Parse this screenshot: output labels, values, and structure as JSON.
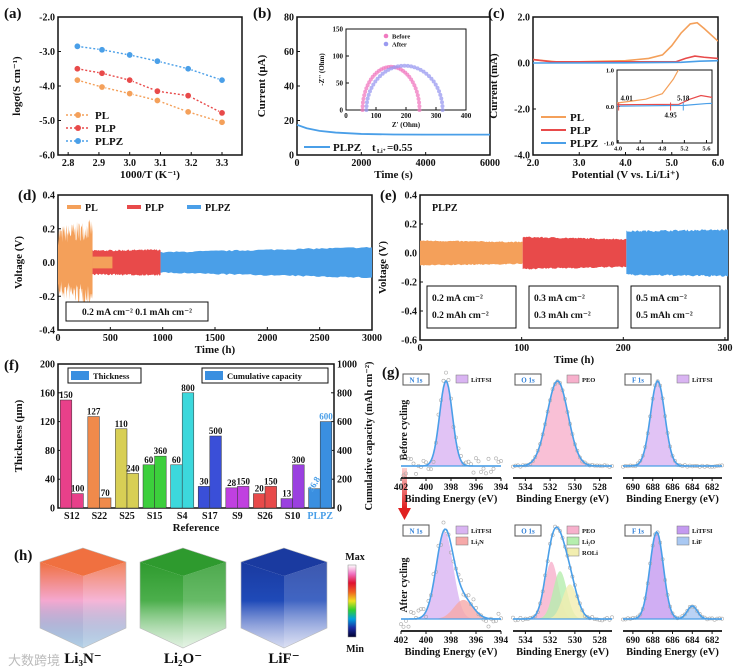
{
  "colors": {
    "PL": "#f4a05a",
    "PLP": "#e84a4a",
    "PLPZ": "#4a9fe8"
  },
  "watermark": "大数跨境",
  "chart_data": [
    {
      "panel": "(a)",
      "type": "line",
      "xlabel": "1000/T (K⁻¹)",
      "ylabel": "logσ(S cm⁻¹)",
      "xlim": [
        2.767,
        3.365
      ],
      "ylim": [
        -6,
        -2
      ],
      "xticks": [
        2.8,
        2.9,
        3.0,
        3.1,
        3.2,
        3.3
      ],
      "xtick_labels": [
        "2.8",
        "2.9",
        "3.0",
        "3.1",
        "3.2",
        "3.3"
      ],
      "yticks": [
        -6,
        -5,
        -4,
        -3,
        -2
      ],
      "ytick_labels": [
        "-6.0",
        "-5.0",
        "-4.0",
        "-3.0",
        "-2.0"
      ],
      "legend": "bottom-left",
      "x": [
        2.83,
        2.91,
        3.0,
        3.09,
        3.19,
        3.3
      ],
      "series": [
        {
          "name": "PL",
          "values": [
            -3.83,
            -4.03,
            -4.22,
            -4.42,
            -4.75,
            -5.05
          ]
        },
        {
          "name": "PLP",
          "values": [
            -3.5,
            -3.63,
            -3.83,
            -4.15,
            -4.28,
            -4.78
          ]
        },
        {
          "name": "PLPZ",
          "values": [
            -2.85,
            -2.95,
            -3.1,
            -3.28,
            -3.5,
            -3.83
          ]
        }
      ]
    },
    {
      "panel": "(b)",
      "type": "line",
      "xlabel": "Time (s)",
      "ylabel": "Current (μA)",
      "xlim": [
        0,
        6000
      ],
      "ylim": [
        0,
        80
      ],
      "xticks": [
        0,
        2000,
        4000,
        6000
      ],
      "xtick_labels": [
        "0",
        "2000",
        "4000",
        "6000"
      ],
      "yticks": [
        0,
        20,
        40,
        60,
        80
      ],
      "ytick_labels": [
        "0",
        "20",
        "40",
        "60",
        "80"
      ],
      "series": [
        {
          "name": "PLPZ",
          "points": [
            [
              0,
              17.5
            ],
            [
              300,
              15.5
            ],
            [
              700,
              14
            ],
            [
              1200,
              13
            ],
            [
              2000,
              12.2
            ],
            [
              3000,
              11.9
            ],
            [
              4000,
              11.8
            ],
            [
              6000,
              11.8
            ]
          ]
        }
      ],
      "legend_label": "PLPZ",
      "annotation": "t",
      "annotation_sub": "Li⁺",
      "annotation_value": "=0.55",
      "inset": {
        "type": "scatter",
        "xlabel": "Z' (Ohm)",
        "ylabel": "-Z'' (Ohm)",
        "xlim": [
          0,
          400
        ],
        "ylim": [
          0,
          150
        ],
        "xticks": [
          0,
          100,
          200,
          300,
          400
        ],
        "xtick_labels": [
          "0",
          "100",
          "200",
          "300",
          "400"
        ],
        "yticks": [
          0,
          50,
          100,
          150
        ],
        "ytick_labels": [
          "0",
          "50",
          "100",
          "150"
        ],
        "series": [
          {
            "name": "Before",
            "color": "#f07ac0",
            "arc_start": 55,
            "arc_end": 245,
            "peak": 80
          },
          {
            "name": "After",
            "color": "#9a9af0",
            "arc_start": 68,
            "arc_end": 322,
            "peak": 82
          }
        ]
      }
    },
    {
      "panel": "(c)",
      "type": "line",
      "xlabel": "Potential (V vs. Li/Li⁺)",
      "ylabel": "Current (mA)",
      "xlim": [
        2,
        6
      ],
      "ylim": [
        -4,
        2
      ],
      "xticks": [
        2,
        3,
        4,
        5,
        6
      ],
      "xtick_labels": [
        "2.0",
        "3.0",
        "4.0",
        "5.0",
        "6.0"
      ],
      "yticks": [
        -4,
        -2,
        0,
        2
      ],
      "ytick_labels": [
        "-4.0",
        "-2.0",
        "0.0",
        "2.0"
      ],
      "legend": "bottom-left",
      "series": [
        {
          "name": "PL",
          "points": [
            [
              2,
              0.15
            ],
            [
              2.5,
              0.05
            ],
            [
              3,
              0.05
            ],
            [
              4,
              0.1
            ],
            [
              4.5,
              0.2
            ],
            [
              4.8,
              0.35
            ],
            [
              5.0,
              0.75
            ],
            [
              5.2,
              1.3
            ],
            [
              5.4,
              1.7
            ],
            [
              5.55,
              1.75
            ],
            [
              5.7,
              1.5
            ],
            [
              6,
              0.95
            ]
          ]
        },
        {
          "name": "PLP",
          "points": [
            [
              2,
              0.15
            ],
            [
              2.4,
              0.05
            ],
            [
              4.0,
              0.05
            ],
            [
              5.1,
              0.06
            ],
            [
              5.3,
              0.2
            ],
            [
              5.5,
              0.3
            ],
            [
              5.7,
              0.25
            ],
            [
              6,
              0.2
            ]
          ]
        },
        {
          "name": "PLPZ",
          "points": [
            [
              2,
              0.0
            ],
            [
              4.0,
              0.01
            ],
            [
              5.2,
              0.03
            ],
            [
              5.6,
              0.08
            ],
            [
              6,
              0.1
            ]
          ]
        }
      ],
      "inset": {
        "xlim": [
          3.98,
          5.7
        ],
        "ylim": [
          -1,
          1
        ],
        "xticks": [
          4.0,
          4.4,
          4.8,
          5.2,
          5.6
        ],
        "xtick_labels": [
          "4.0",
          "4.4",
          "4.8",
          "5.2",
          "5.6"
        ],
        "yticks": [
          -1,
          0,
          1
        ],
        "ytick_labels": [
          "-1.0",
          "0.0",
          "1.0"
        ],
        "annotations": [
          {
            "x": 4.01,
            "label": "4.01"
          },
          {
            "x": 4.95,
            "label": "4.95"
          },
          {
            "x": 5.18,
            "label": "5.18"
          }
        ]
      }
    },
    {
      "panel": "(d)",
      "type": "area",
      "xlabel": "Time (h)",
      "ylabel": "Voltage (V)",
      "xlim": [
        0,
        3000
      ],
      "ylim": [
        -0.4,
        0.4
      ],
      "xticks": [
        0,
        500,
        1000,
        1500,
        2000,
        2500,
        3000
      ],
      "xtick_labels": [
        "0",
        "500",
        "1000",
        "1500",
        "2000",
        "2500",
        "3000"
      ],
      "yticks": [
        -0.4,
        -0.2,
        0,
        0.2,
        0.4
      ],
      "ytick_labels": [
        "-0.4",
        "-0.2",
        "0.0",
        "0.2",
        "0.4"
      ],
      "legend": "top-left",
      "series": [
        {
          "name": "PL",
          "start": 0,
          "end": 330,
          "amp_start": 0.16,
          "amp_end": 0.2,
          "noise": 0.06
        },
        {
          "name": "PLP",
          "start": 330,
          "end": 980,
          "amp_start": 0.07,
          "amp_end": 0.075,
          "noise": 0.005
        },
        {
          "name": "PLPZ",
          "start": 980,
          "end": 3000,
          "amp_start": 0.06,
          "amp_end": 0.09,
          "noise": 0.004
        }
      ],
      "condition": [
        "0.2 mA cm⁻²  0.1 mAh cm⁻²"
      ]
    },
    {
      "panel": "(e)",
      "type": "area",
      "title": "PLPZ",
      "xlabel": "Time (h)",
      "ylabel": "Voltage (V)",
      "xlim": [
        0,
        303
      ],
      "ylim": [
        -0.6,
        0.4
      ],
      "xticks": [
        0,
        100,
        200,
        300
      ],
      "xtick_labels": [
        "0",
        "100",
        "200",
        "300"
      ],
      "yticks": [
        -0.6,
        -0.4,
        -0.2,
        0,
        0.2,
        0.4
      ],
      "ytick_labels": [
        "-0.6",
        "-0.4",
        "-0.2",
        "0.0",
        "0.2",
        "0.4"
      ],
      "series": [
        {
          "name": "0.2 mA",
          "color_key": "PL",
          "start": 0,
          "end": 101,
          "amp_start": 0.085,
          "amp_end": 0.075,
          "noise": 0.004
        },
        {
          "name": "0.3 mA",
          "color_key": "PLP",
          "start": 101,
          "end": 203,
          "amp_start": 0.11,
          "amp_end": 0.095,
          "noise": 0.005
        },
        {
          "name": "0.5 mA",
          "color_key": "PLPZ",
          "start": 203,
          "end": 303,
          "amp_start": 0.15,
          "amp_end": 0.16,
          "noise": 0.006
        }
      ],
      "conditions": [
        [
          "0.2 mA cm⁻²",
          "0.2 mAh cm⁻²"
        ],
        [
          "0.3 mA cm⁻²",
          "0.3 mAh cm⁻²"
        ],
        [
          "0.5 mA cm⁻²",
          "0.5 mAh cm⁻²"
        ]
      ]
    },
    {
      "panel": "(f)",
      "type": "bar",
      "xlabel": "Reference",
      "ylabel": "Thickness (μm)",
      "y2label": "Cumulative capacity (mAh cm⁻²)",
      "ylim": [
        0,
        200
      ],
      "y2lim": [
        0,
        1000
      ],
      "yticks": [
        0,
        40,
        80,
        120,
        160,
        200
      ],
      "ytick_labels": [
        "0",
        "40",
        "80",
        "120",
        "160",
        "200"
      ],
      "y2ticks": [
        0,
        200,
        400,
        600,
        800,
        1000
      ],
      "y2tick_labels": [
        "0",
        "200",
        "400",
        "600",
        "800",
        "1000"
      ],
      "legend": [
        "Thickness",
        "Cumulative capacity"
      ],
      "categories": [
        "S12",
        "S22",
        "S25",
        "S15",
        "S4",
        "S17",
        "S9",
        "S26",
        "S10",
        "PLPZ"
      ],
      "colors": [
        "#e8408a",
        "#f08a4b",
        "#d8cf55",
        "#3ccf3c",
        "#3cd8dc",
        "#3a4fd8",
        "#c040e0",
        "#e84a4a",
        "#9a40e0",
        "#3a8fe0"
      ],
      "series": [
        {
          "name": "Thickness",
          "values": [
            150,
            127,
            110,
            60,
            60,
            30,
            28,
            20,
            13,
            26.8
          ],
          "labels": [
            "150",
            "127",
            "110",
            "60",
            "60",
            "30",
            "28",
            "20",
            "13",
            "26.8"
          ]
        },
        {
          "name": "Cumulative capacity",
          "values": [
            100,
            70,
            240,
            360,
            800,
            500,
            150,
            150,
            300,
            600
          ],
          "labels": [
            "100",
            "70",
            "240",
            "360",
            "800",
            "500",
            "150",
            "150",
            "300",
            "600"
          ]
        }
      ]
    },
    {
      "panel": "(g)",
      "type": "line",
      "row_labels": [
        "Before cycling",
        "After cycling"
      ],
      "xlabel": "Binding Energy (eV)",
      "subplots": [
        {
          "row": 0,
          "title": "N 1s",
          "xlim": [
            402,
            394
          ],
          "xticks": [
            402,
            400,
            398,
            396,
            394
          ],
          "xtick_labels": [
            "402",
            "400",
            "398",
            "396",
            "394"
          ],
          "noise": 0.12,
          "components": [
            {
              "name": "LiTFSI",
              "color": "#d9b4f2",
              "center": 398.4,
              "fwhm": 1.2,
              "height": 1.0
            }
          ]
        },
        {
          "row": 0,
          "title": "O 1s",
          "xlim": [
            535,
            527
          ],
          "xticks": [
            534,
            532,
            530,
            528
          ],
          "xtick_labels": [
            "534",
            "532",
            "530",
            "528"
          ],
          "noise": 0.01,
          "components": [
            {
              "name": "PEO",
              "color": "#f7b0cc",
              "center": 531.4,
              "fwhm": 2.0,
              "height": 1.0
            }
          ]
        },
        {
          "row": 0,
          "title": "F 1s",
          "xlim": [
            691,
            681
          ],
          "xticks": [
            690,
            688,
            686,
            684,
            682
          ],
          "xtick_labels": [
            "690",
            "688",
            "686",
            "684",
            "682"
          ],
          "noise": 0.01,
          "components": [
            {
              "name": "LiTFSI",
              "color": "#d9b4f2",
              "center": 687.5,
              "fwhm": 1.7,
              "height": 1.0
            }
          ]
        },
        {
          "row": 1,
          "title": "N 1s",
          "xlim": [
            402,
            394
          ],
          "xticks": [
            402,
            400,
            398,
            396,
            394
          ],
          "xtick_labels": [
            "402",
            "400",
            "398",
            "396",
            "394"
          ],
          "noise": 0.1,
          "components": [
            {
              "name": "LiTFSI",
              "color": "#d9b4f2",
              "center": 398.5,
              "fwhm": 1.6,
              "height": 1.0
            },
            {
              "name": "Li₃N",
              "color": "#f6a9a9",
              "center": 397.0,
              "fwhm": 1.8,
              "height": 0.22
            }
          ]
        },
        {
          "row": 1,
          "title": "O 1s",
          "xlim": [
            535,
            527
          ],
          "xticks": [
            534,
            532,
            530,
            528
          ],
          "xtick_labels": [
            "534",
            "532",
            "530",
            "528"
          ],
          "noise": 0.02,
          "components": [
            {
              "name": "PEO",
              "color": "#f7b0cc",
              "center": 531.9,
              "fwhm": 1.3,
              "height": 0.66
            },
            {
              "name": "Li₂O",
              "color": "#b5eeae",
              "center": 531.2,
              "fwhm": 1.3,
              "height": 0.55
            },
            {
              "name": "ROLi",
              "color": "#f2eeb0",
              "center": 530.4,
              "fwhm": 1.4,
              "height": 0.4
            }
          ]
        },
        {
          "row": 1,
          "title": "F 1s",
          "xlim": [
            691,
            681
          ],
          "xticks": [
            690,
            688,
            686,
            684,
            682
          ],
          "xtick_labels": [
            "690",
            "688",
            "686",
            "684",
            "682"
          ],
          "noise": 0.01,
          "components": [
            {
              "name": "LiTFSI",
              "color": "#c49af0",
              "center": 687.6,
              "fwhm": 1.6,
              "height": 1.0
            },
            {
              "name": "LiF",
              "color": "#a9c8f2",
              "center": 684.0,
              "fwhm": 1.2,
              "height": 0.15
            }
          ]
        }
      ]
    },
    {
      "panel": "(h)",
      "type": "heatmap",
      "maps": [
        {
          "label": "Li₃N⁻",
          "top_color": "#f07040",
          "mid_color": "#f4a8d0",
          "low_color": "#2a7ab8"
        },
        {
          "label": "Li₂O⁻",
          "top_color": "#2e9a2e",
          "mid_color": "#4caf4c",
          "low_color": "#a8d8a8"
        },
        {
          "label": "LiF⁻",
          "top_color": "#1a3aa0",
          "mid_color": "#1f4ab8",
          "low_color": "#8898d8"
        }
      ],
      "colorbar": {
        "max_label": "Max",
        "min_label": "Min",
        "stops": [
          "#000030",
          "#1a2aa0",
          "#00a0e0",
          "#30d030",
          "#f0e020",
          "#f06020",
          "#e01030",
          "#f070c0",
          "#ffffff"
        ]
      }
    }
  ]
}
